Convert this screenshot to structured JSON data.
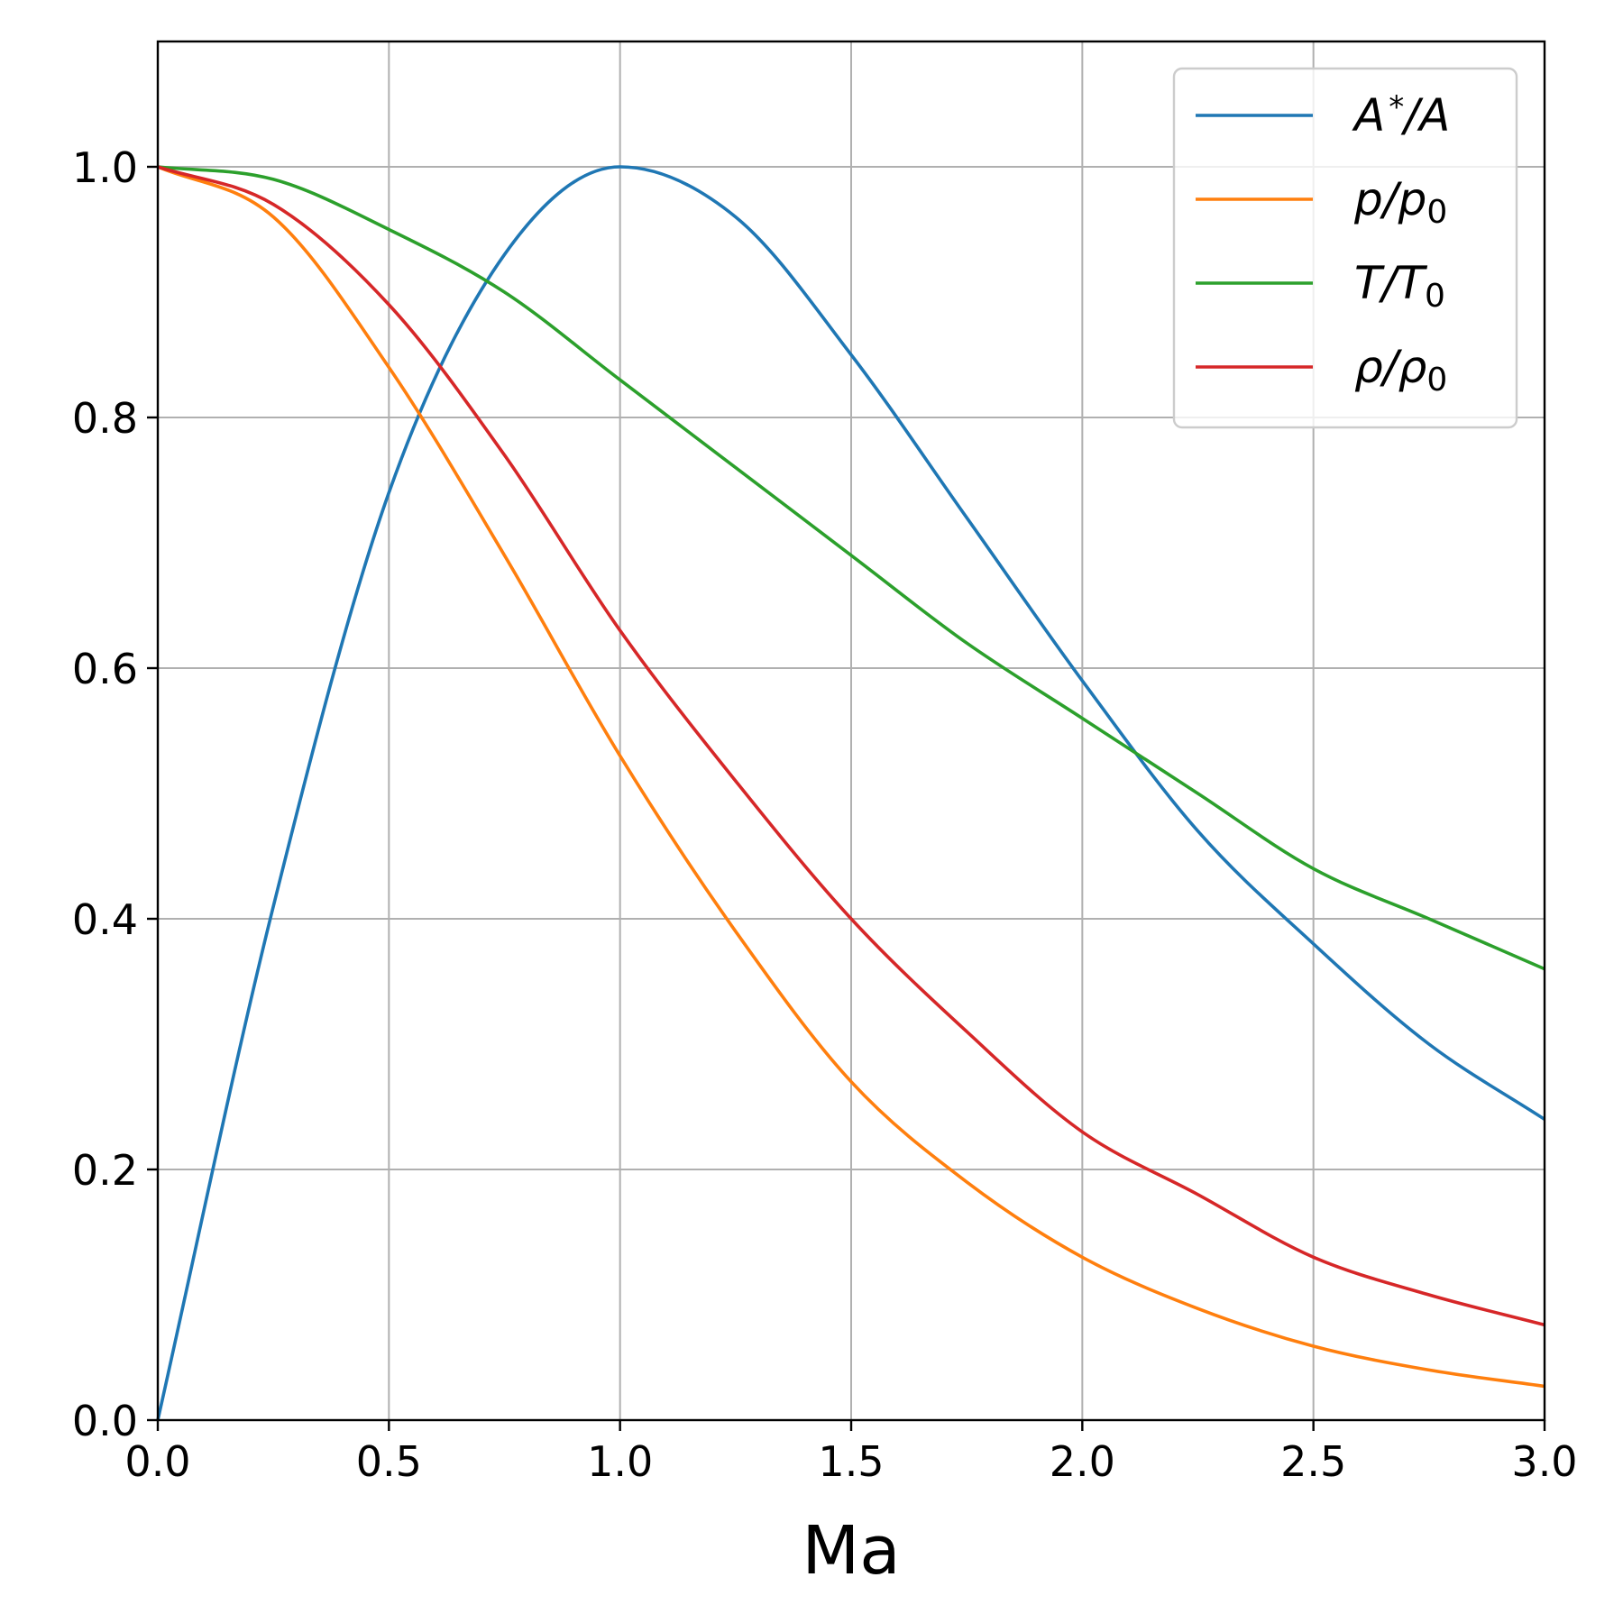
{
  "chart_data": {
    "type": "line",
    "xlabel": "Ma",
    "ylabel": "",
    "xlim": [
      0,
      3
    ],
    "ylim": [
      0,
      1.1
    ],
    "grid": true,
    "legend_position": "top-right",
    "x_ticks": [
      "0.0",
      "0.5",
      "1.0",
      "1.5",
      "2.0",
      "2.5",
      "3.0"
    ],
    "x_tick_values": [
      0,
      0.5,
      1.0,
      1.5,
      2.0,
      2.5,
      3.0
    ],
    "y_ticks": [
      "0.0",
      "0.2",
      "0.4",
      "0.6",
      "0.8",
      "1.0"
    ],
    "y_tick_values": [
      0,
      0.2,
      0.4,
      0.6,
      0.8,
      1.0
    ],
    "x": [
      0,
      0.25,
      0.5,
      0.75,
      1.0,
      1.25,
      1.5,
      1.75,
      2.0,
      2.25,
      2.5,
      2.75,
      3.0
    ],
    "series": [
      {
        "name": "A*/A",
        "color": "#1f77b4",
        "values": [
          0,
          0.41,
          0.74,
          0.93,
          1.0,
          0.96,
          0.85,
          0.72,
          0.59,
          0.47,
          0.38,
          0.3,
          0.24
        ]
      },
      {
        "name": "p/p0",
        "color": "#ff7f0e",
        "values": [
          1.0,
          0.96,
          0.84,
          0.69,
          0.53,
          0.39,
          0.27,
          0.19,
          0.13,
          0.089,
          0.059,
          0.04,
          0.027
        ]
      },
      {
        "name": "T/T0",
        "color": "#2ca02c",
        "values": [
          1.0,
          0.99,
          0.95,
          0.9,
          0.83,
          0.76,
          0.69,
          0.62,
          0.56,
          0.5,
          0.44,
          0.4,
          0.36
        ]
      },
      {
        "name": "ρ/ρ0",
        "color": "#d62728",
        "values": [
          1.0,
          0.97,
          0.89,
          0.77,
          0.63,
          0.51,
          0.4,
          0.31,
          0.23,
          0.18,
          0.13,
          0.1,
          0.076
        ]
      }
    ]
  }
}
